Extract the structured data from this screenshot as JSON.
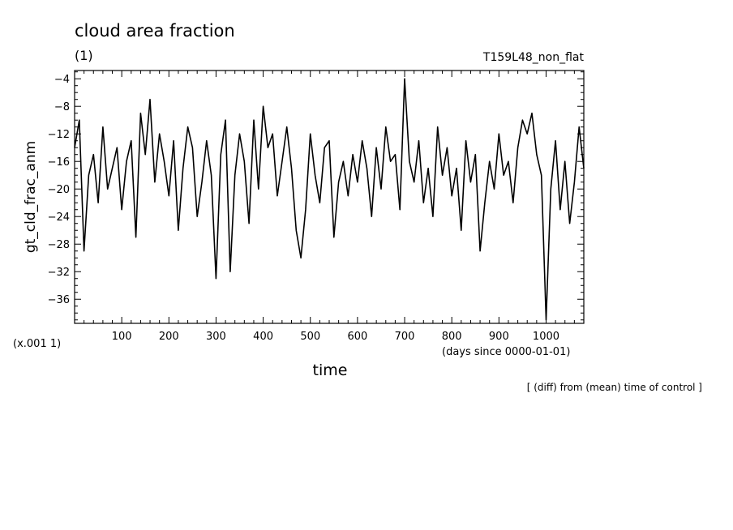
{
  "chart_data": {
    "type": "line",
    "title": "cloud area fraction",
    "units": "(1)",
    "experiment": "T159L48_non_flat",
    "ylabel": "gt_cld_frac_anm",
    "yscale_note": "(x.001 1)",
    "xlabel": "time",
    "xunits": "(days since 0000-01-01)",
    "footnote": "[ (diff) from (mean) time of control ]",
    "xlim": [
      0,
      1080
    ],
    "ylim": [
      -39.5,
      -2.8
    ],
    "xticks": [
      100,
      200,
      300,
      400,
      500,
      600,
      700,
      800,
      900,
      1000
    ],
    "yticks": [
      -4,
      -8,
      -12,
      -16,
      -20,
      -24,
      -28,
      -32,
      -36
    ],
    "tick_labels_x": [
      "100",
      "200",
      "300",
      "400",
      "500",
      "600",
      "700",
      "800",
      "900",
      "1000"
    ],
    "tick_labels_y": [
      "−4",
      "−8",
      "−12",
      "−16",
      "−20",
      "−24",
      "−28",
      "−32",
      "−36"
    ],
    "series": [
      {
        "color": "#000000",
        "x": [
          0,
          10,
          20,
          30,
          40,
          50,
          60,
          70,
          80,
          90,
          100,
          110,
          120,
          130,
          140,
          150,
          160,
          170,
          180,
          190,
          200,
          210,
          220,
          230,
          240,
          250,
          260,
          270,
          280,
          290,
          300,
          310,
          320,
          330,
          340,
          350,
          360,
          370,
          380,
          390,
          400,
          410,
          420,
          430,
          440,
          450,
          460,
          470,
          480,
          490,
          500,
          510,
          520,
          530,
          540,
          550,
          560,
          570,
          580,
          590,
          600,
          610,
          620,
          630,
          640,
          650,
          660,
          670,
          680,
          690,
          700,
          710,
          720,
          730,
          740,
          750,
          760,
          770,
          780,
          790,
          800,
          810,
          820,
          830,
          840,
          850,
          860,
          870,
          880,
          890,
          900,
          910,
          920,
          930,
          940,
          950,
          960,
          970,
          980,
          990,
          1000,
          1010,
          1020,
          1030,
          1040,
          1050,
          1060,
          1070,
          1080
        ],
        "y": [
          -14,
          -10,
          -29,
          -18,
          -15,
          -22,
          -11,
          -20,
          -17,
          -14,
          -23,
          -16,
          -13,
          -27,
          -9,
          -15,
          -7,
          -19,
          -12,
          -16,
          -21,
          -13,
          -26,
          -17,
          -11,
          -14,
          -24,
          -19,
          -13,
          -18,
          -33,
          -15,
          -10,
          -32,
          -18,
          -12,
          -16,
          -25,
          -10,
          -20,
          -8,
          -14,
          -12,
          -21,
          -16,
          -11,
          -17,
          -26,
          -30,
          -23,
          -12,
          -18,
          -22,
          -14,
          -13,
          -27,
          -19,
          -16,
          -21,
          -15,
          -19,
          -13,
          -17,
          -24,
          -14,
          -20,
          -11,
          -16,
          -15,
          -23,
          -4,
          -16,
          -19,
          -13,
          -22,
          -17,
          -24,
          -11,
          -18,
          -14,
          -21,
          -17,
          -26,
          -13,
          -19,
          -15,
          -29,
          -22,
          -16,
          -20,
          -12,
          -18,
          -16,
          -22,
          -14,
          -10,
          -12,
          -9,
          -15,
          -18,
          -39,
          -20,
          -13,
          -23,
          -16,
          -25,
          -19,
          -11,
          -17
        ]
      }
    ]
  }
}
